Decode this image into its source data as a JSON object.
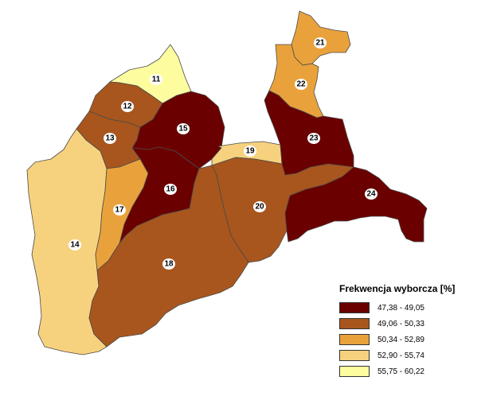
{
  "legend": {
    "title": "Frekwencja wyborcza [%]",
    "classes": [
      {
        "label": "47,38 - 49,05",
        "color": "#6b0000"
      },
      {
        "label": "49,06 - 50,33",
        "color": "#a8561d"
      },
      {
        "label": "50,34 - 52,89",
        "color": "#e9a23b"
      },
      {
        "label": "52,90 - 55,74",
        "color": "#f7d27e"
      },
      {
        "label": "55,75 - 60,22",
        "color": "#fdfda0"
      }
    ]
  },
  "districts": [
    {
      "id": "11",
      "label": "11",
      "class": 4
    },
    {
      "id": "12",
      "label": "12",
      "class": 1
    },
    {
      "id": "13",
      "label": "13",
      "class": 1
    },
    {
      "id": "14",
      "label": "14",
      "class": 3
    },
    {
      "id": "15",
      "label": "15",
      "class": 0
    },
    {
      "id": "16",
      "label": "16",
      "class": 0
    },
    {
      "id": "17",
      "label": "17",
      "class": 2
    },
    {
      "id": "18",
      "label": "18",
      "class": 1
    },
    {
      "id": "19",
      "label": "19",
      "class": 3
    },
    {
      "id": "20",
      "label": "20",
      "class": 1
    },
    {
      "id": "21",
      "label": "21",
      "class": 2
    },
    {
      "id": "22",
      "label": "22",
      "class": 2
    },
    {
      "id": "23",
      "label": "23",
      "class": 0
    },
    {
      "id": "24",
      "label": "24",
      "class": 0
    }
  ]
}
